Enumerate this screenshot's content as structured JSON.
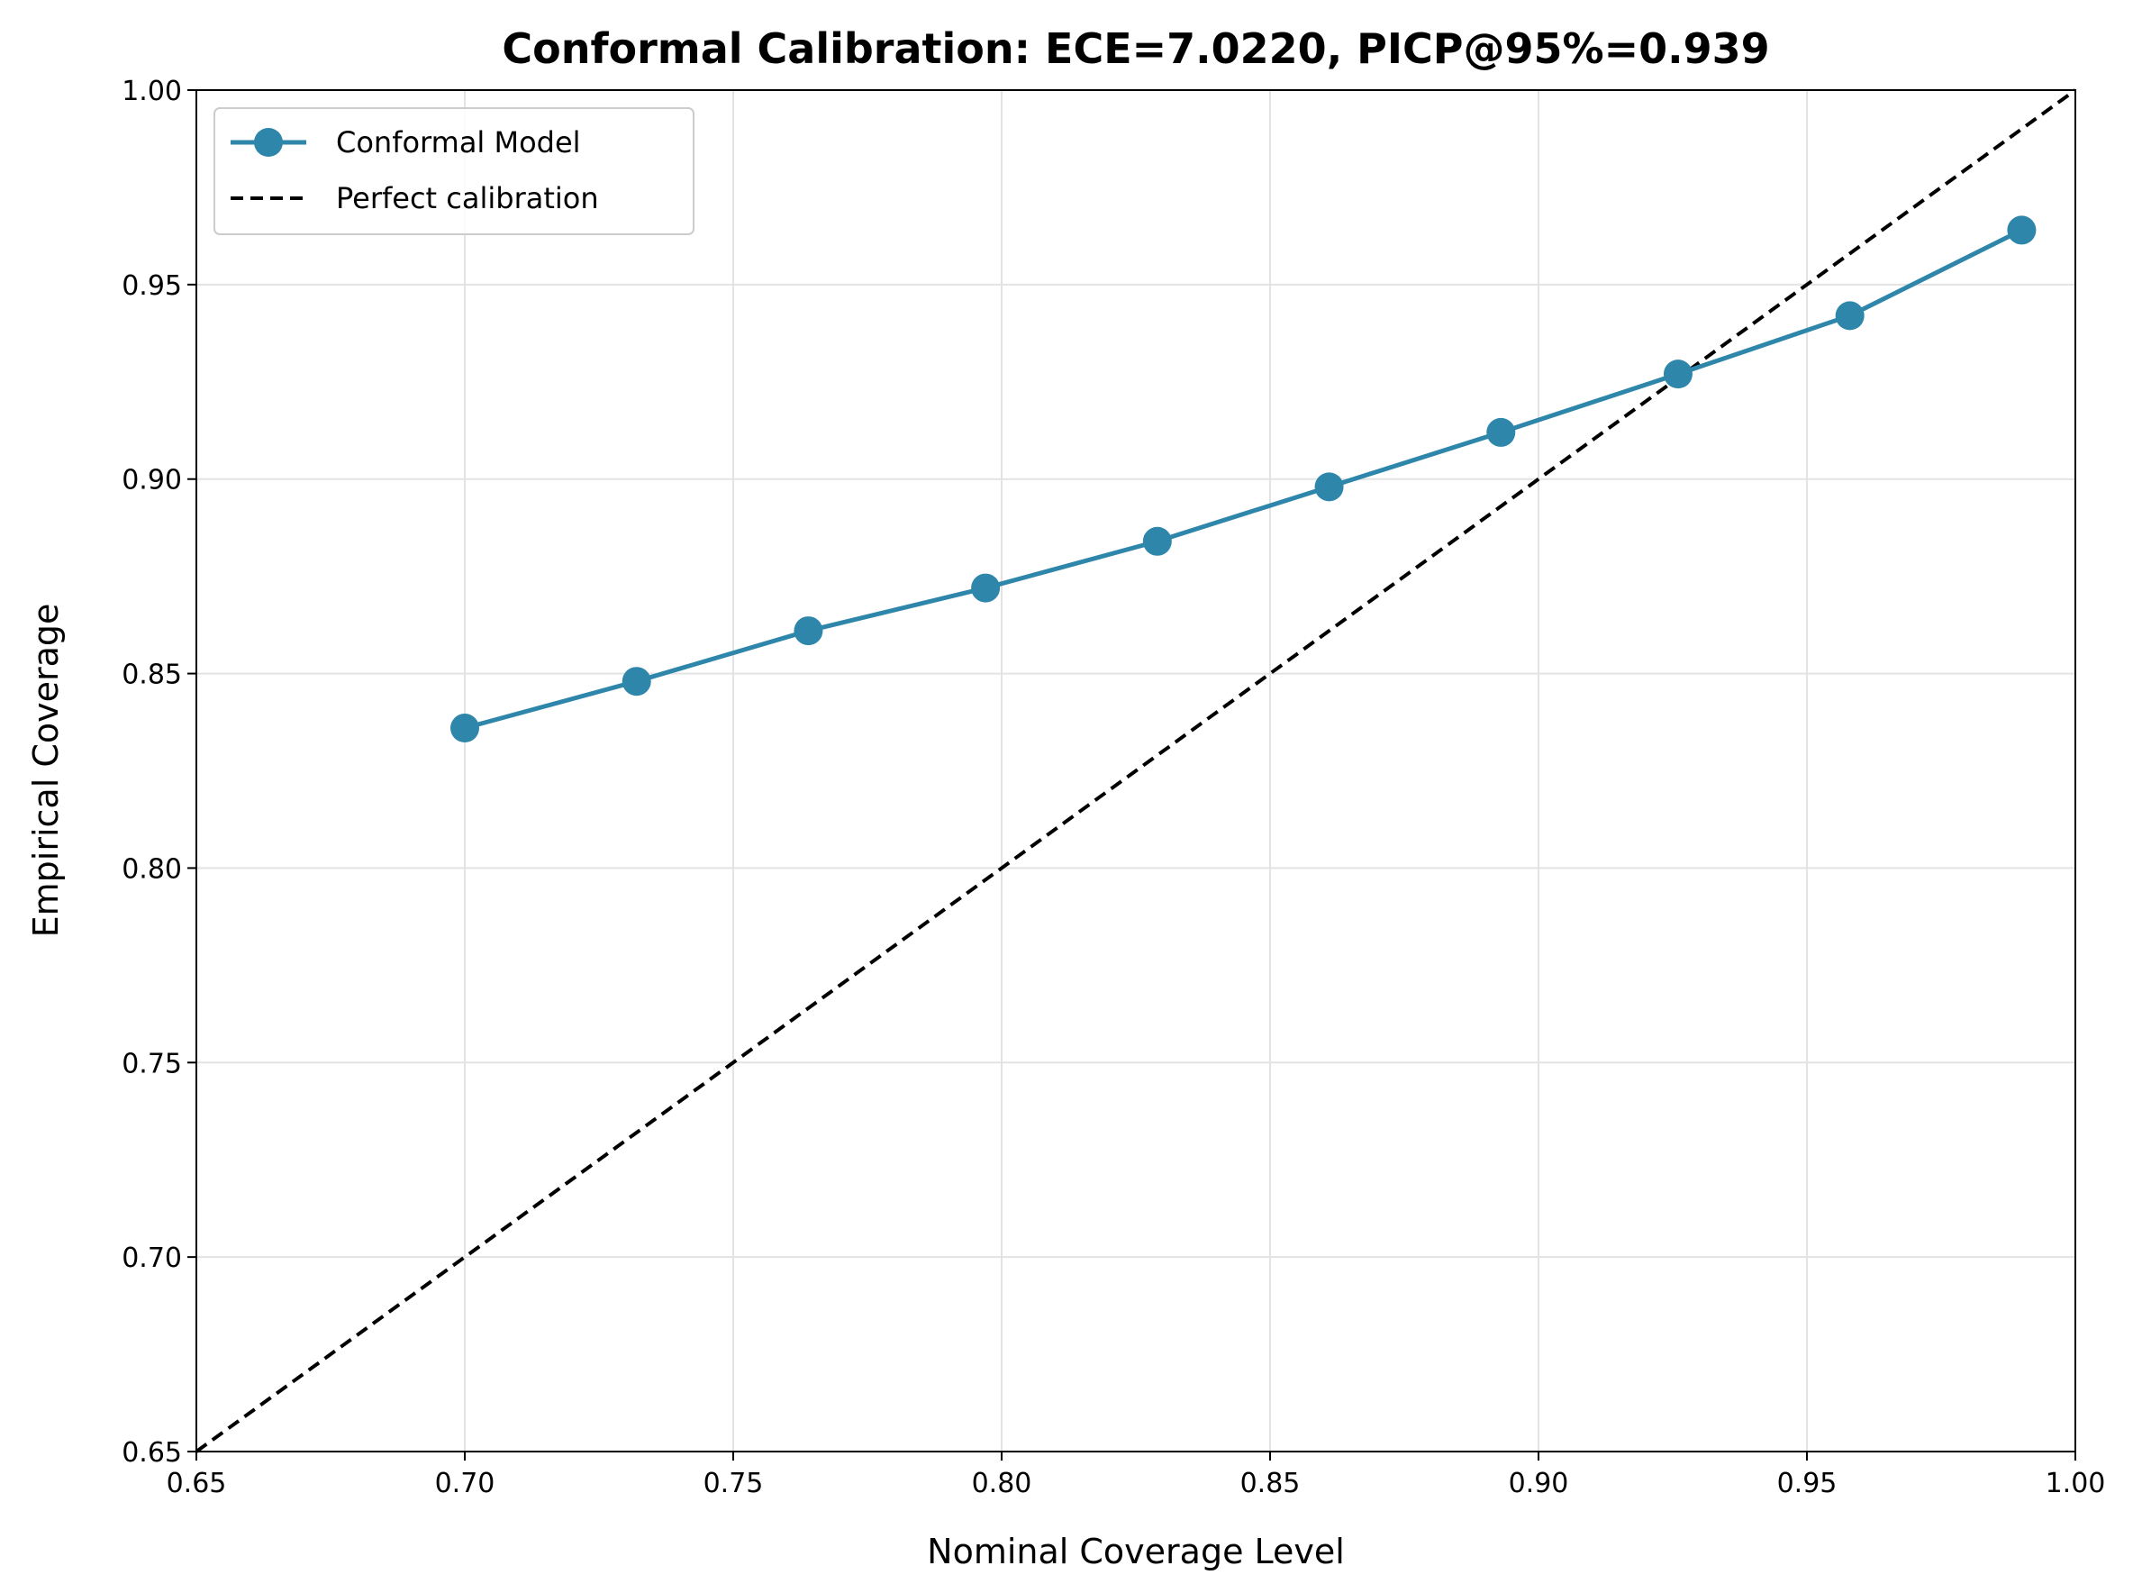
{
  "chart_data": {
    "type": "line",
    "title": "Conformal Calibration: ECE=7.0220, PICP@95%=0.939",
    "xlabel": "Nominal Coverage Level",
    "ylabel": "Empirical Coverage",
    "xlim": [
      0.65,
      1.0
    ],
    "ylim": [
      0.65,
      1.0
    ],
    "xticks": [
      "0.65",
      "0.70",
      "0.75",
      "0.80",
      "0.85",
      "0.90",
      "0.95",
      "1.00"
    ],
    "yticks": [
      "0.65",
      "0.70",
      "0.75",
      "0.80",
      "0.85",
      "0.90",
      "0.95",
      "1.00"
    ],
    "grid": true,
    "legend_position": "top-left",
    "series": [
      {
        "name": "Conformal Model",
        "color": "#2e86ab",
        "style": "solid-with-circle-markers",
        "x": [
          0.7,
          0.732,
          0.764,
          0.797,
          0.829,
          0.861,
          0.893,
          0.926,
          0.958,
          0.99
        ],
        "y": [
          0.836,
          0.848,
          0.861,
          0.872,
          0.884,
          0.898,
          0.912,
          0.927,
          0.942,
          0.964
        ]
      },
      {
        "name": "Perfect calibration",
        "color": "#000000",
        "style": "dashed",
        "x": [
          0.65,
          1.0
        ],
        "y": [
          0.65,
          1.0
        ]
      }
    ]
  }
}
